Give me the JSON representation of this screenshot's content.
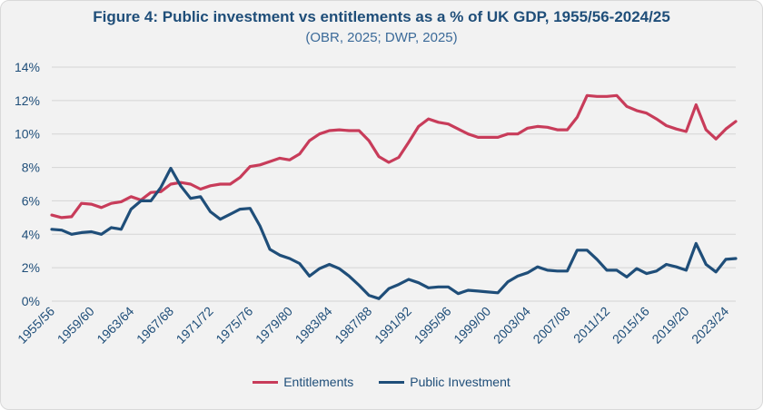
{
  "chart_data": {
    "type": "line",
    "title": "Figure 4: Public investment vs entitlements as a % of UK GDP, 1955/56-2024/25",
    "subtitle": "(OBR, 2025; DWP, 2025)",
    "x_start_label": "1955/56",
    "x_tick_labels": [
      "1955/56",
      "1959/60",
      "1963/64",
      "1967/68",
      "1971/72",
      "1975/76",
      "1979/80",
      "1983/84",
      "1987/88",
      "1991/92",
      "1995/96",
      "1999/00",
      "2003/04",
      "2007/08",
      "2011/12",
      "2015/16",
      "2019/20",
      "2023/24"
    ],
    "y_tick_labels": [
      "0%",
      "2%",
      "4%",
      "6%",
      "8%",
      "10%",
      "12%",
      "14%"
    ],
    "ylim": [
      0,
      14
    ],
    "grid": true,
    "legend_position": "bottom",
    "series": [
      {
        "name": "Entitlements",
        "color": "#c83c5a",
        "values": [
          5.15,
          5.0,
          5.05,
          5.85,
          5.8,
          5.6,
          5.85,
          5.95,
          6.25,
          6.05,
          6.5,
          6.55,
          7.0,
          7.1,
          7.0,
          6.7,
          6.9,
          7.0,
          7.0,
          7.4,
          8.05,
          8.15,
          8.35,
          8.55,
          8.45,
          8.8,
          9.6,
          10.0,
          10.2,
          10.25,
          10.2,
          10.2,
          9.6,
          8.65,
          8.3,
          8.6,
          9.5,
          10.45,
          10.9,
          10.7,
          10.6,
          10.3,
          10.0,
          9.8,
          9.8,
          9.8,
          10.0,
          10.0,
          10.35,
          10.45,
          10.4,
          10.25,
          10.25,
          11.0,
          12.3,
          12.25,
          12.25,
          12.3,
          11.65,
          11.4,
          11.25,
          10.9,
          10.5,
          10.3,
          10.15,
          11.75,
          10.25,
          9.7,
          10.3,
          10.75
        ]
      },
      {
        "name": "Public Investment",
        "color": "#1f4e79",
        "values": [
          4.3,
          4.25,
          4.0,
          4.1,
          4.15,
          4.0,
          4.4,
          4.3,
          5.5,
          6.0,
          6.0,
          6.8,
          7.95,
          6.9,
          6.15,
          6.25,
          5.35,
          4.9,
          5.2,
          5.5,
          5.55,
          4.5,
          3.1,
          2.75,
          2.55,
          2.25,
          1.5,
          1.95,
          2.2,
          1.95,
          1.5,
          0.95,
          0.35,
          0.15,
          0.75,
          1.0,
          1.3,
          1.1,
          0.8,
          0.85,
          0.85,
          0.45,
          0.65,
          0.6,
          0.55,
          0.5,
          1.15,
          1.5,
          1.7,
          2.05,
          1.85,
          1.8,
          1.8,
          3.05,
          3.05,
          2.5,
          1.85,
          1.85,
          1.45,
          1.95,
          1.65,
          1.8,
          2.2,
          2.05,
          1.85,
          3.45,
          2.2,
          1.75,
          2.5,
          2.55
        ]
      }
    ]
  }
}
